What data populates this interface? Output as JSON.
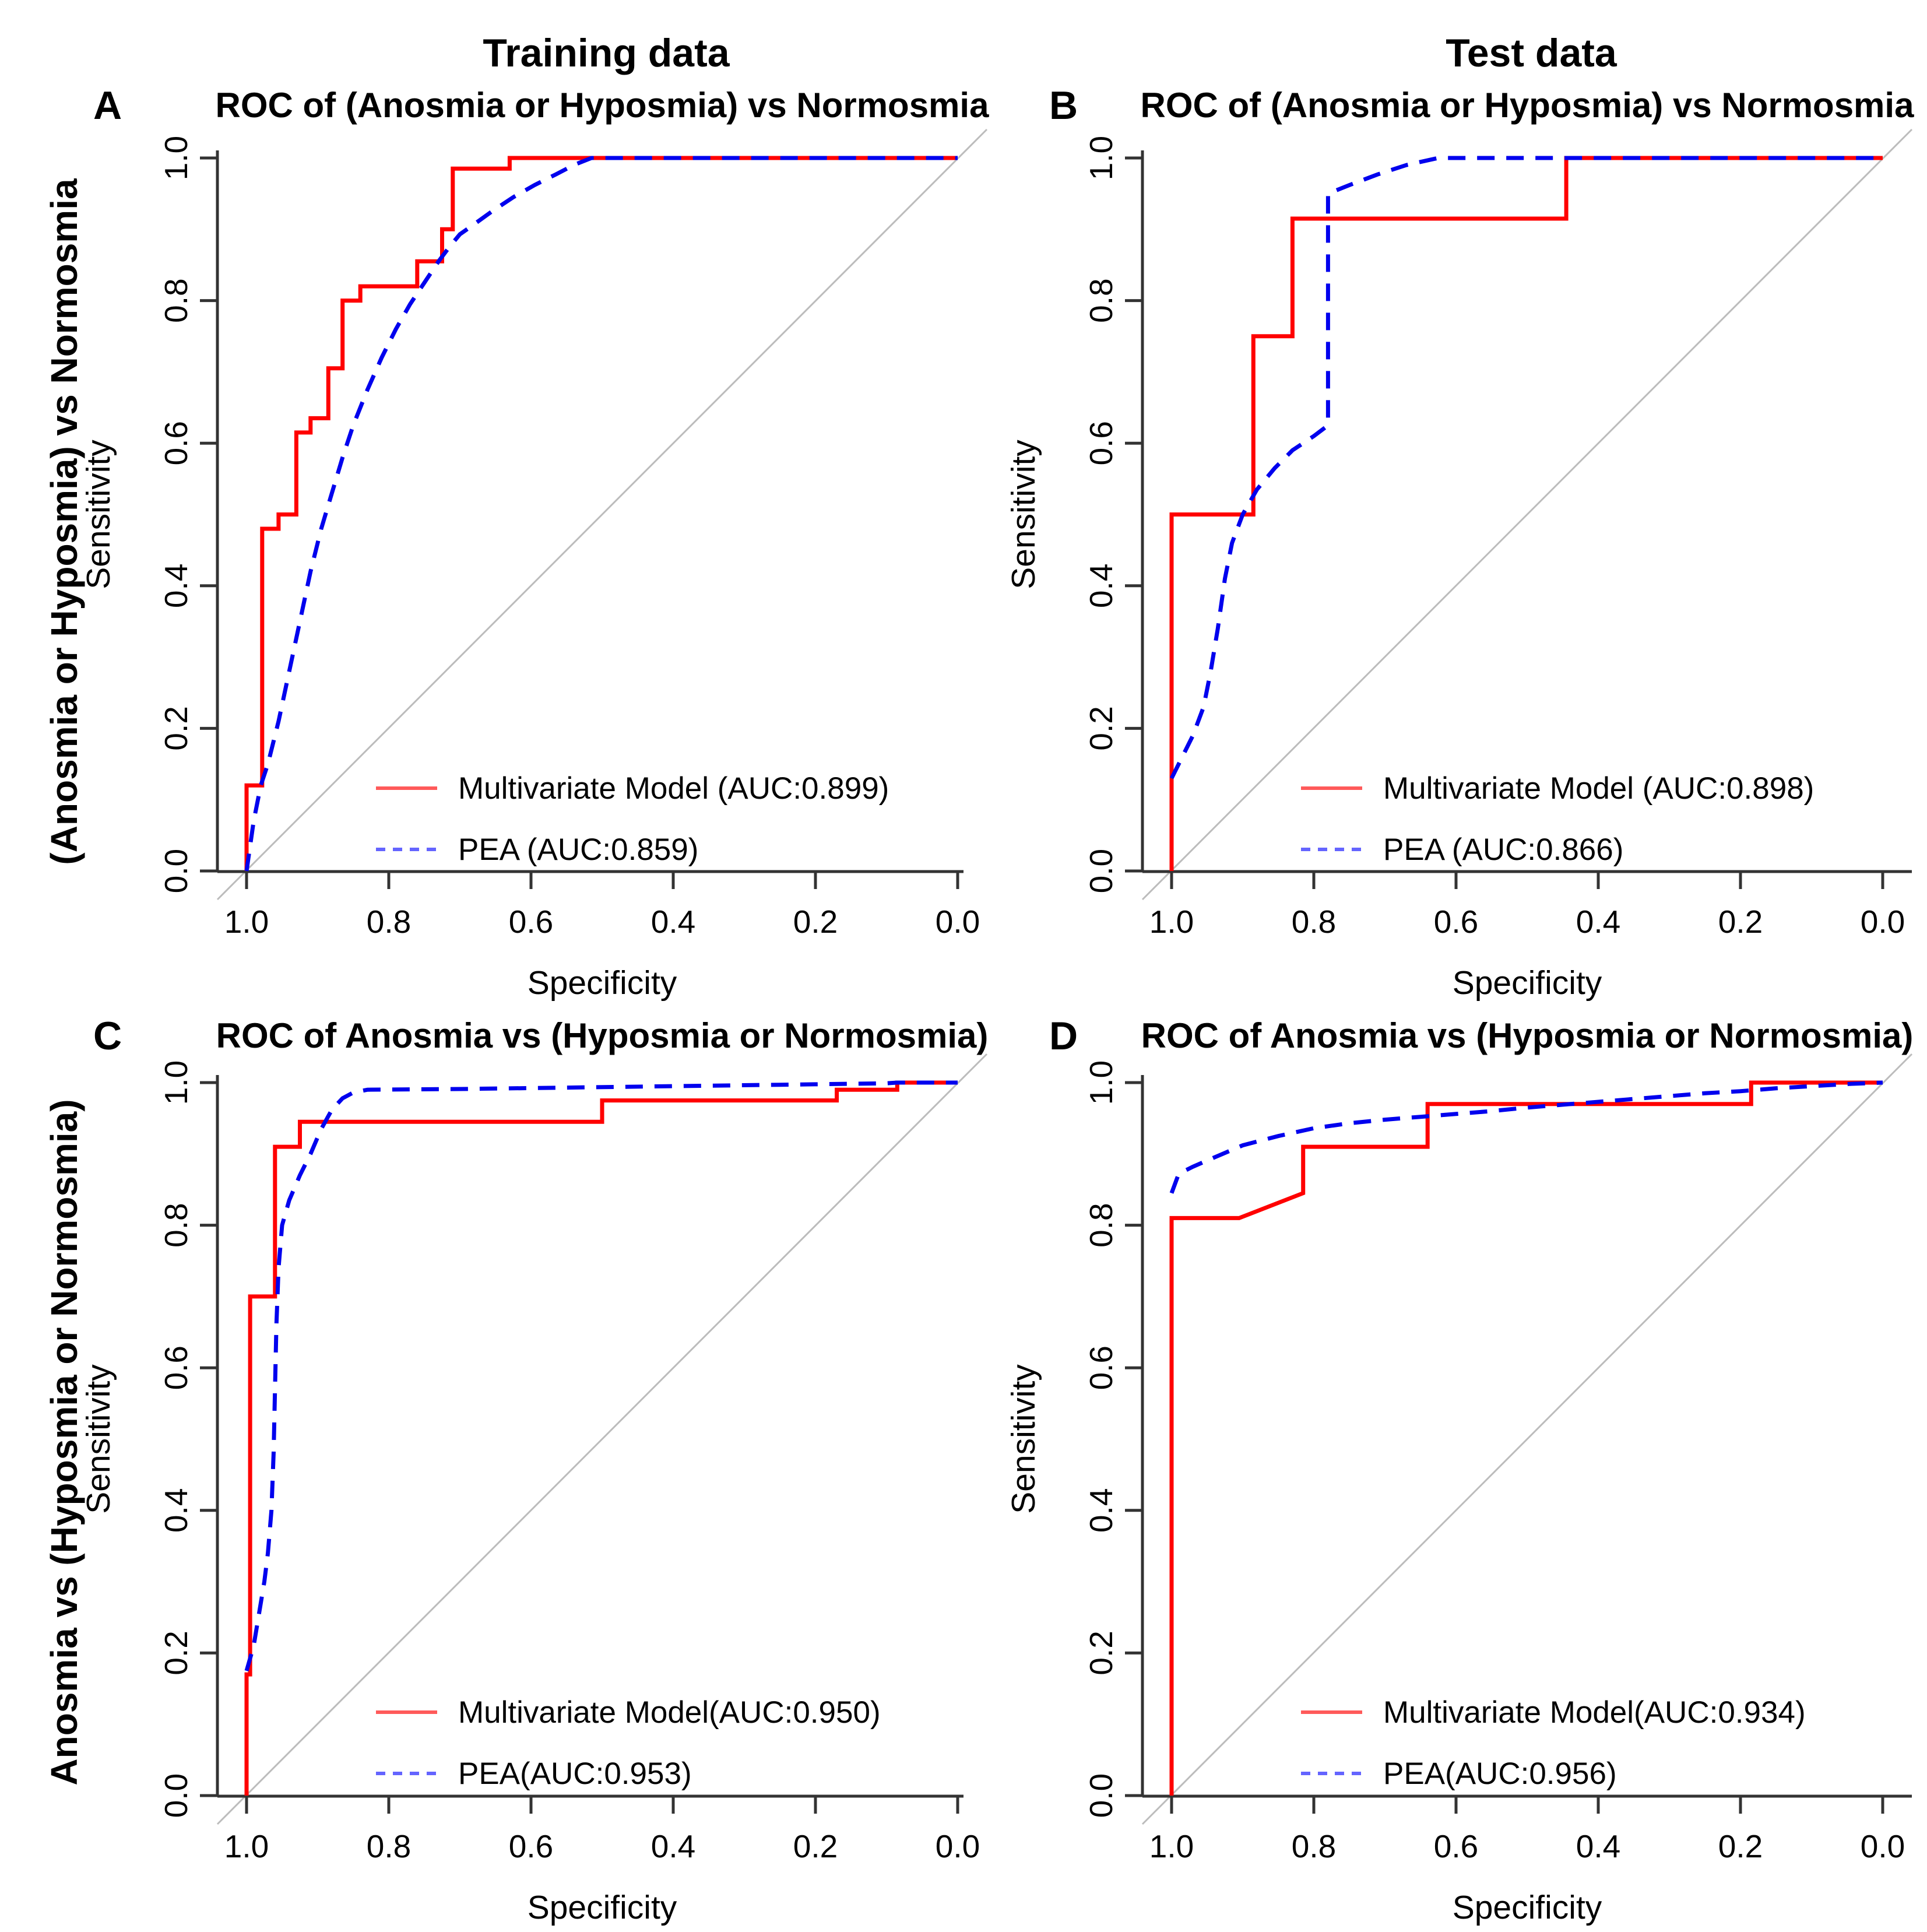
{
  "page": {
    "column_headers": [
      "Training data",
      "Test data"
    ],
    "row_labels": [
      "(Anosmia or Hyposmia) vs Normosmia",
      "Anosmia vs (Hyposmia or Normosmia)"
    ]
  },
  "colors": {
    "curve_red": "#ff0000",
    "curve_blue": "#0000ee",
    "legend_red": "#ff5a5a",
    "legend_blue": "#6464ff",
    "diagonal_gray": "#bcbcbc",
    "axis_color": "#333333",
    "text_color": "#000000"
  },
  "axes": {
    "x_label": "Specificity",
    "y_label": "Sensitivity",
    "x_ticks": [
      "1.0",
      "0.8",
      "0.6",
      "0.4",
      "0.2",
      "0.0"
    ],
    "y_ticks": [
      "0.0",
      "0.2",
      "0.4",
      "0.6",
      "0.8",
      "1.0"
    ],
    "x_range_reversed": [
      1.0,
      0.0
    ],
    "y_range": [
      0.0,
      1.0
    ],
    "grid": false,
    "chance_diagonal": true
  },
  "chart_data": [
    {
      "type": "line",
      "panel": "A",
      "letter": "A",
      "column": "Training data",
      "title": "ROC of (Anosmia or Hyposmia) vs Normosmia",
      "xlabel": "Specificity",
      "ylabel": "Sensitivity",
      "legend_position": "bottom-right",
      "legend": [
        {
          "label": "Multivariate Model (AUC:0.899)",
          "style": "solid"
        },
        {
          "label": "PEA (AUC:0.859)",
          "style": "dashed"
        }
      ],
      "series": [
        {
          "name": "Multivariate Model",
          "auc": 0.899,
          "style": "solid",
          "color": "#ff0000",
          "points": [
            [
              1,
              0
            ],
            [
              1,
              0.12
            ],
            [
              0.978,
              0.12
            ],
            [
              0.978,
              0.48
            ],
            [
              0.955,
              0.48
            ],
            [
              0.955,
              0.5
            ],
            [
              0.93,
              0.5
            ],
            [
              0.93,
              0.615
            ],
            [
              0.91,
              0.615
            ],
            [
              0.91,
              0.635
            ],
            [
              0.885,
              0.635
            ],
            [
              0.885,
              0.705
            ],
            [
              0.865,
              0.705
            ],
            [
              0.865,
              0.8
            ],
            [
              0.84,
              0.8
            ],
            [
              0.84,
              0.82
            ],
            [
              0.76,
              0.82
            ],
            [
              0.76,
              0.855
            ],
            [
              0.725,
              0.855
            ],
            [
              0.725,
              0.9
            ],
            [
              0.71,
              0.9
            ],
            [
              0.71,
              0.985
            ],
            [
              0.63,
              0.985
            ],
            [
              0.63,
              1
            ],
            [
              0,
              1
            ]
          ]
        },
        {
          "name": "PEA",
          "auc": 0.859,
          "style": "dashed",
          "color": "#0000ee",
          "points": [
            [
              1,
              0
            ],
            [
              0.99,
              0.07
            ],
            [
              0.98,
              0.12
            ],
            [
              0.97,
              0.15
            ],
            [
              0.955,
              0.21
            ],
            [
              0.94,
              0.28
            ],
            [
              0.925,
              0.35
            ],
            [
              0.91,
              0.42
            ],
            [
              0.895,
              0.48
            ],
            [
              0.88,
              0.53
            ],
            [
              0.865,
              0.58
            ],
            [
              0.85,
              0.625
            ],
            [
              0.83,
              0.675
            ],
            [
              0.81,
              0.72
            ],
            [
              0.79,
              0.76
            ],
            [
              0.77,
              0.795
            ],
            [
              0.75,
              0.825
            ],
            [
              0.73,
              0.855
            ],
            [
              0.715,
              0.875
            ],
            [
              0.7,
              0.893
            ],
            [
              0.68,
              0.907
            ],
            [
              0.655,
              0.925
            ],
            [
              0.625,
              0.945
            ],
            [
              0.595,
              0.962
            ],
            [
              0.565,
              0.977
            ],
            [
              0.54,
              0.99
            ],
            [
              0.515,
              1
            ],
            [
              0,
              1
            ]
          ]
        }
      ]
    },
    {
      "type": "line",
      "panel": "B",
      "letter": "B",
      "column": "Test data",
      "title": "ROC of (Anosmia or Hyposmia) vs Normosmia",
      "xlabel": "Specificity",
      "ylabel": "Sensitivity",
      "legend_position": "bottom-right",
      "legend": [
        {
          "label": "Multivariate Model (AUC:0.898)",
          "style": "solid"
        },
        {
          "label": "PEA (AUC:0.866)",
          "style": "dashed"
        }
      ],
      "series": [
        {
          "name": "Multivariate Model",
          "auc": 0.898,
          "style": "solid",
          "color": "#ff0000",
          "points": [
            [
              1,
              0
            ],
            [
              1,
              0.5
            ],
            [
              0.885,
              0.5
            ],
            [
              0.885,
              0.75
            ],
            [
              0.83,
              0.75
            ],
            [
              0.83,
              0.915
            ],
            [
              0.445,
              0.915
            ],
            [
              0.445,
              1
            ],
            [
              0,
              1
            ]
          ]
        },
        {
          "name": "PEA",
          "auc": 0.866,
          "style": "dashed",
          "color": "#0000ee",
          "points": [
            [
              1,
              0.13
            ],
            [
              0.985,
              0.16
            ],
            [
              0.97,
              0.19
            ],
            [
              0.955,
              0.23
            ],
            [
              0.945,
              0.28
            ],
            [
              0.935,
              0.34
            ],
            [
              0.925,
              0.41
            ],
            [
              0.915,
              0.46
            ],
            [
              0.9,
              0.5
            ],
            [
              0.88,
              0.535
            ],
            [
              0.855,
              0.565
            ],
            [
              0.83,
              0.59
            ],
            [
              0.8,
              0.61
            ],
            [
              0.78,
              0.625
            ],
            [
              0.78,
              0.95
            ],
            [
              0.75,
              0.962
            ],
            [
              0.71,
              0.977
            ],
            [
              0.67,
              0.99
            ],
            [
              0.625,
              1
            ],
            [
              0,
              1
            ]
          ]
        }
      ]
    },
    {
      "type": "line",
      "panel": "C",
      "letter": "C",
      "column": "Training data",
      "title": "ROC of Anosmia vs (Hyposmia or Normosmia)",
      "xlabel": "Specificity",
      "ylabel": "Sensitivity",
      "legend_position": "bottom-right",
      "legend": [
        {
          "label": "Multivariate Model(AUC:0.950)",
          "style": "solid"
        },
        {
          "label": "PEA(AUC:0.953)",
          "style": "dashed"
        }
      ],
      "series": [
        {
          "name": "Multivariate Model",
          "auc": 0.95,
          "style": "solid",
          "color": "#ff0000",
          "points": [
            [
              1,
              0
            ],
            [
              1,
              0.17
            ],
            [
              0.995,
              0.17
            ],
            [
              0.995,
              0.7
            ],
            [
              0.96,
              0.7
            ],
            [
              0.96,
              0.91
            ],
            [
              0.925,
              0.91
            ],
            [
              0.925,
              0.945
            ],
            [
              0.5,
              0.945
            ],
            [
              0.5,
              0.975
            ],
            [
              0.17,
              0.975
            ],
            [
              0.17,
              0.99
            ],
            [
              0.085,
              0.99
            ],
            [
              0.085,
              1
            ],
            [
              0,
              1
            ]
          ]
        },
        {
          "name": "PEA",
          "auc": 0.953,
          "style": "dashed",
          "color": "#0000ee",
          "points": [
            [
              1,
              0.175
            ],
            [
              0.99,
              0.21
            ],
            [
              0.985,
              0.24
            ],
            [
              0.98,
              0.27
            ],
            [
              0.975,
              0.3
            ],
            [
              0.97,
              0.34
            ],
            [
              0.965,
              0.4
            ],
            [
              0.962,
              0.48
            ],
            [
              0.96,
              0.57
            ],
            [
              0.958,
              0.66
            ],
            [
              0.955,
              0.74
            ],
            [
              0.95,
              0.8
            ],
            [
              0.94,
              0.835
            ],
            [
              0.925,
              0.87
            ],
            [
              0.91,
              0.9
            ],
            [
              0.895,
              0.935
            ],
            [
              0.88,
              0.962
            ],
            [
              0.865,
              0.978
            ],
            [
              0.85,
              0.986
            ],
            [
              0.83,
              0.99
            ],
            [
              0.7,
              0.991
            ],
            [
              0.55,
              0.993
            ],
            [
              0.4,
              0.995
            ],
            [
              0.25,
              0.997
            ],
            [
              0.1,
              0.999
            ],
            [
              0.085,
              1
            ],
            [
              0,
              1
            ]
          ]
        }
      ]
    },
    {
      "type": "line",
      "panel": "D",
      "letter": "D",
      "column": "Test data",
      "title": "ROC of Anosmia vs (Hyposmia or Normosmia)",
      "xlabel": "Specificity",
      "ylabel": "Sensitivity",
      "legend_position": "bottom-right",
      "legend": [
        {
          "label": "Multivariate Model(AUC:0.934)",
          "style": "solid"
        },
        {
          "label": "PEA(AUC:0.956)",
          "style": "dashed"
        }
      ],
      "series": [
        {
          "name": "Multivariate Model",
          "auc": 0.934,
          "style": "solid",
          "color": "#ff0000",
          "points": [
            [
              1,
              0
            ],
            [
              1,
              0.81
            ],
            [
              0.905,
              0.81
            ],
            [
              0.815,
              0.845
            ],
            [
              0.815,
              0.91
            ],
            [
              0.64,
              0.91
            ],
            [
              0.64,
              0.97
            ],
            [
              0.185,
              0.97
            ],
            [
              0.185,
              1
            ],
            [
              0,
              1
            ]
          ]
        },
        {
          "name": "PEA",
          "auc": 0.956,
          "style": "dashed",
          "color": "#0000ee",
          "points": [
            [
              1,
              0.845
            ],
            [
              0.99,
              0.872
            ],
            [
              0.97,
              0.882
            ],
            [
              0.94,
              0.895
            ],
            [
              0.9,
              0.912
            ],
            [
              0.85,
              0.925
            ],
            [
              0.8,
              0.936
            ],
            [
              0.75,
              0.943
            ],
            [
              0.7,
              0.948
            ],
            [
              0.65,
              0.952
            ],
            [
              0.6,
              0.956
            ],
            [
              0.55,
              0.96
            ],
            [
              0.5,
              0.965
            ],
            [
              0.45,
              0.969
            ],
            [
              0.4,
              0.973
            ],
            [
              0.35,
              0.977
            ],
            [
              0.3,
              0.981
            ],
            [
              0.25,
              0.985
            ],
            [
              0.2,
              0.988
            ],
            [
              0.15,
              0.992
            ],
            [
              0.1,
              0.995
            ],
            [
              0.05,
              0.998
            ],
            [
              0,
              1
            ]
          ]
        }
      ]
    }
  ]
}
